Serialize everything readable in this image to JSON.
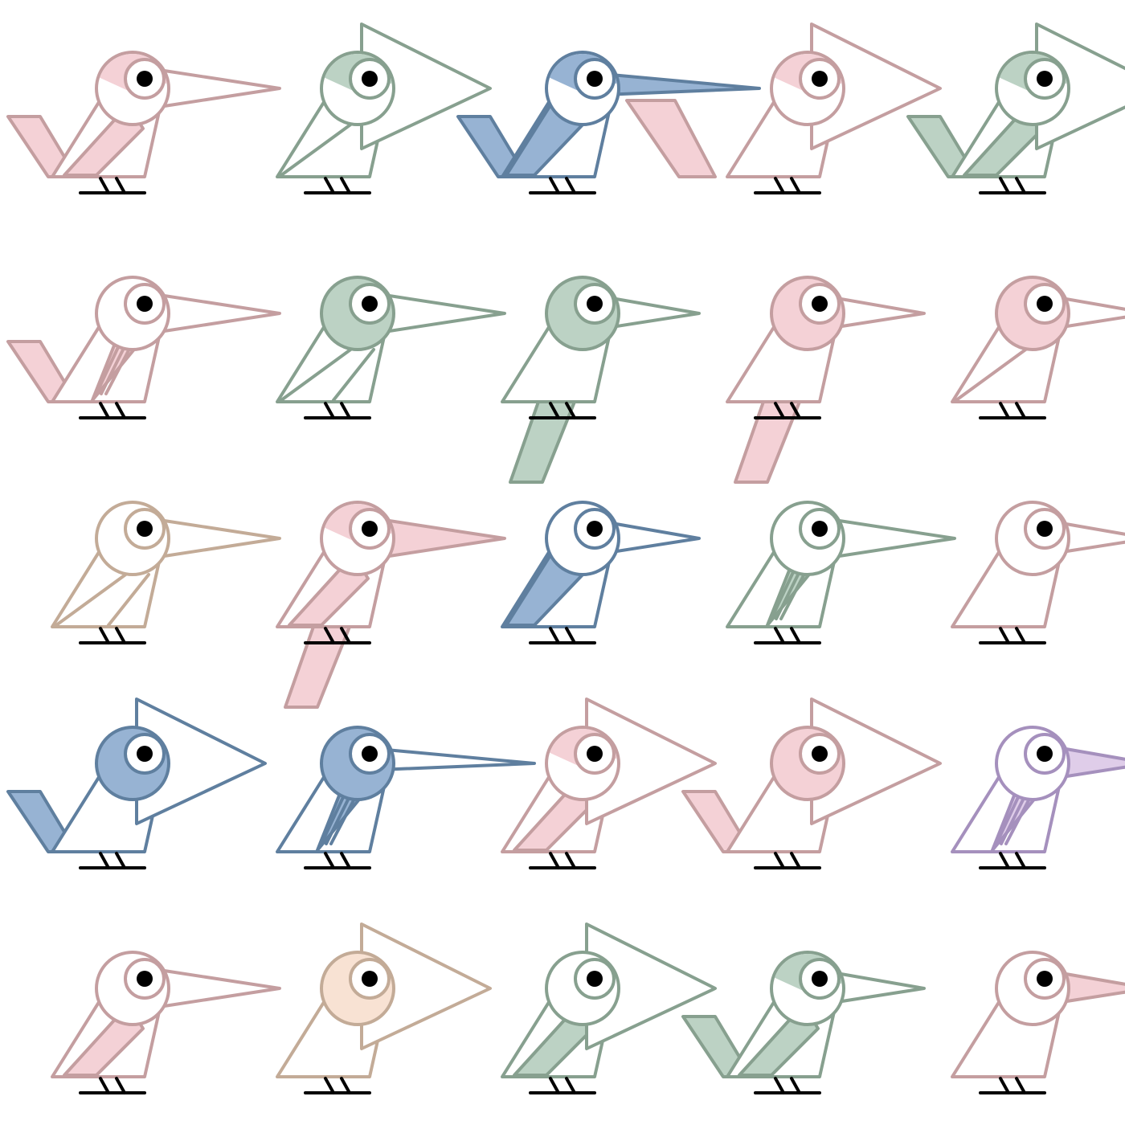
{
  "palettes": {
    "pink": {
      "stroke": "#c49ea0",
      "fill": "#f4d1d6"
    },
    "green": {
      "stroke": "#87a08f",
      "fill": "#bcd2c4"
    },
    "blue": {
      "stroke": "#5f7f9f",
      "fill": "#97b3d3"
    },
    "tan": {
      "stroke": "#c3ab97",
      "fill": "#f8e2d3"
    },
    "purple": {
      "stroke": "#a590bd",
      "fill": "#dfcde9"
    }
  },
  "birds": [
    {
      "color": "pink",
      "beak": "long",
      "head": "wedge",
      "tail": "low",
      "wing": "cross",
      "tailFill": true,
      "beakFill": false
    },
    {
      "color": "green",
      "beak": "big",
      "head": "wedge",
      "tail": "none",
      "wing": "line",
      "tailFill": false,
      "beakFill": false
    },
    {
      "color": "blue",
      "beak": "needle",
      "head": "wedge",
      "tail": "low",
      "wing": "full",
      "tailFill": true,
      "beakFill": true
    },
    {
      "color": "pink",
      "beak": "big",
      "head": "wedge",
      "tail": "back",
      "wing": "none",
      "tailFill": true,
      "beakFill": false
    },
    {
      "color": "green",
      "beak": "big",
      "head": "wedge",
      "tail": "low",
      "wing": "half",
      "tailFill": true,
      "beakFill": false
    },
    {
      "color": "pink",
      "beak": "long",
      "head": "white",
      "tail": "low",
      "wing": "fan",
      "tailFill": true,
      "beakFill": false
    },
    {
      "color": "green",
      "beak": "long",
      "head": "full",
      "tail": "none",
      "wing": "twin",
      "tailFill": false,
      "beakFill": false
    },
    {
      "color": "green",
      "beak": "short",
      "head": "full",
      "tail": "down",
      "wing": "none",
      "tailFill": true,
      "beakFill": false
    },
    {
      "color": "pink",
      "beak": "short",
      "head": "full",
      "tail": "down",
      "wing": "none",
      "tailFill": true,
      "beakFill": false
    },
    {
      "color": "pink",
      "beak": "short",
      "head": "full",
      "tail": "none",
      "wing": "line2",
      "tailFill": false,
      "beakFill": false
    },
    {
      "color": "tan",
      "beak": "long",
      "head": "white",
      "tail": "none",
      "wing": "front",
      "tailFill": false,
      "beakFill": false
    },
    {
      "color": "pink",
      "beak": "long",
      "head": "wedge",
      "tail": "down",
      "wing": "cross",
      "tailFill": true,
      "beakFill": true
    },
    {
      "color": "blue",
      "beak": "short",
      "head": "white",
      "tail": "none",
      "wing": "full",
      "tailFill": false,
      "beakFill": false
    },
    {
      "color": "green",
      "beak": "long",
      "head": "white",
      "tail": "none",
      "wing": "fan",
      "tailFill": false,
      "beakFill": false
    },
    {
      "color": "pink",
      "beak": "short",
      "head": "white",
      "tail": "none",
      "wing": "none",
      "tailFill": false,
      "beakFill": false
    },
    {
      "color": "blue",
      "beak": "big",
      "head": "full",
      "tail": "low",
      "wing": "none",
      "tailFill": true,
      "beakFill": false
    },
    {
      "color": "blue",
      "beak": "needle",
      "head": "full",
      "tail": "none",
      "wing": "stripe",
      "tailFill": false,
      "beakFill": false
    },
    {
      "color": "pink",
      "beak": "big",
      "head": "wedge",
      "tail": "none",
      "wing": "low",
      "tailFill": false,
      "beakFill": false
    },
    {
      "color": "pink",
      "beak": "big",
      "head": "full",
      "tail": "low",
      "wing": "none",
      "tailFill": true,
      "beakFill": false
    },
    {
      "color": "purple",
      "beak": "short",
      "head": "white",
      "tail": "none",
      "wing": "stripe",
      "tailFill": false,
      "beakFill": true
    },
    {
      "color": "pink",
      "beak": "long",
      "head": "white",
      "tail": "none",
      "wing": "low",
      "tailFill": false,
      "beakFill": false
    },
    {
      "color": "tan",
      "beak": "big",
      "head": "full",
      "tail": "none",
      "wing": "none",
      "tailFill": false,
      "beakFill": false
    },
    {
      "color": "green",
      "beak": "big",
      "head": "white",
      "tail": "none",
      "wing": "mid",
      "tailFill": false,
      "beakFill": false
    },
    {
      "color": "green",
      "beak": "short",
      "head": "wedge",
      "tail": "low",
      "wing": "cross",
      "tailFill": true,
      "beakFill": false
    },
    {
      "color": "pink",
      "beak": "short",
      "head": "white",
      "tail": "none",
      "wing": "none",
      "tailFill": false,
      "beakFill": true
    }
  ]
}
